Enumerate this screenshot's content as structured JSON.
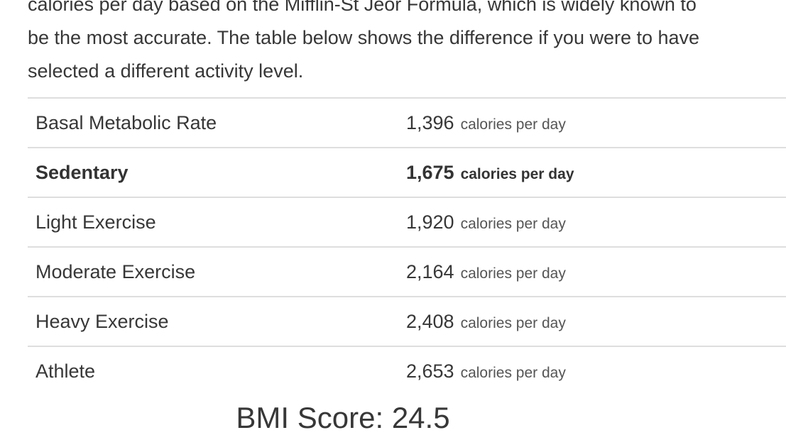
{
  "intro": {
    "line1": "calories per day based on the Mifflin-St Jeor Formula, which is widely known to",
    "line2": "be the most accurate. The table below shows the difference if you were to have",
    "line3": "selected a different activity level."
  },
  "table": {
    "rows": [
      {
        "label": "Basal Metabolic Rate",
        "value": "1,396",
        "unit": "calories per day",
        "highlighted": false
      },
      {
        "label": "Sedentary",
        "value": "1,675",
        "unit": "calories per day",
        "highlighted": true
      },
      {
        "label": "Light Exercise",
        "value": "1,920",
        "unit": "calories per day",
        "highlighted": false
      },
      {
        "label": "Moderate Exercise",
        "value": "2,164",
        "unit": "calories per day",
        "highlighted": false
      },
      {
        "label": "Heavy Exercise",
        "value": "2,408",
        "unit": "calories per day",
        "highlighted": false
      },
      {
        "label": "Athlete",
        "value": "2,653",
        "unit": "calories per day",
        "highlighted": false
      }
    ]
  },
  "bmi": {
    "heading": "BMI Score: 24.5"
  },
  "colors": {
    "text": "#373737",
    "muted": "#555555",
    "divider": "#dedede",
    "background": "#ffffff"
  }
}
